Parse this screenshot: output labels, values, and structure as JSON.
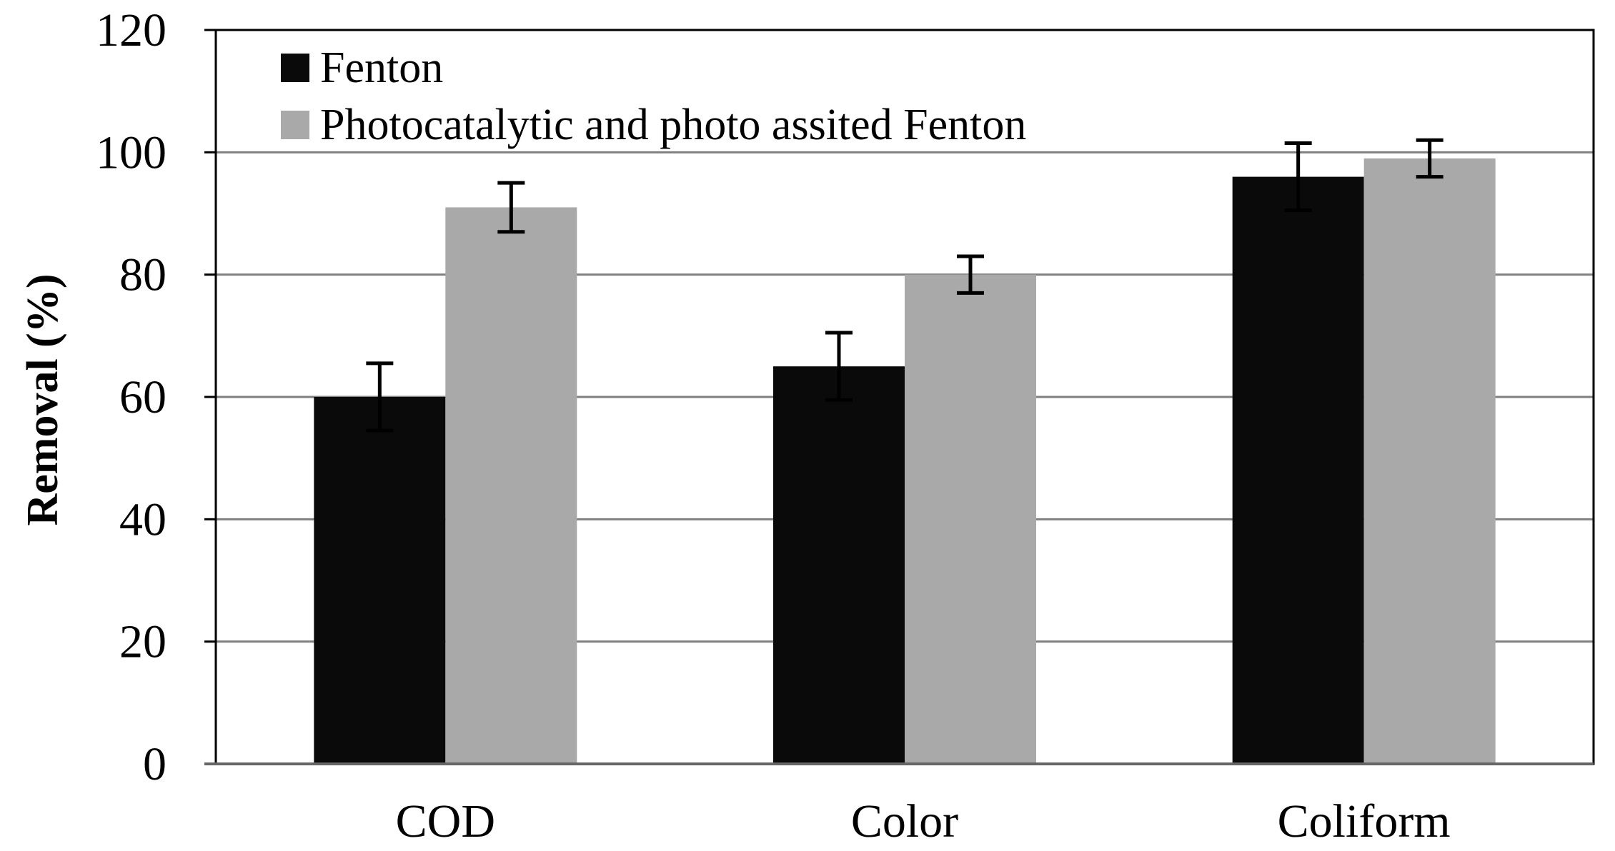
{
  "chart_data": {
    "type": "bar",
    "title": "",
    "xlabel": "",
    "ylabel": "Removal (%)",
    "ylim": [
      0,
      120
    ],
    "yticks": [
      0,
      20,
      40,
      60,
      80,
      100,
      120
    ],
    "grid": true,
    "legend_position": "top-left",
    "categories": [
      "COD",
      "Color",
      "Coliform"
    ],
    "series": [
      {
        "name": "Fenton",
        "color": "#0a0a0a",
        "values": [
          60,
          65,
          96
        ],
        "errors": [
          5.5,
          5.5,
          5.5
        ]
      },
      {
        "name": "Photocatalytic and photo assited Fenton",
        "color": "#a9a9a9",
        "values": [
          91,
          80,
          99
        ],
        "errors": [
          4,
          3,
          3
        ]
      }
    ],
    "colors": {
      "grid": "#808080",
      "frame": "#000000",
      "error_bar": "#000000"
    }
  }
}
